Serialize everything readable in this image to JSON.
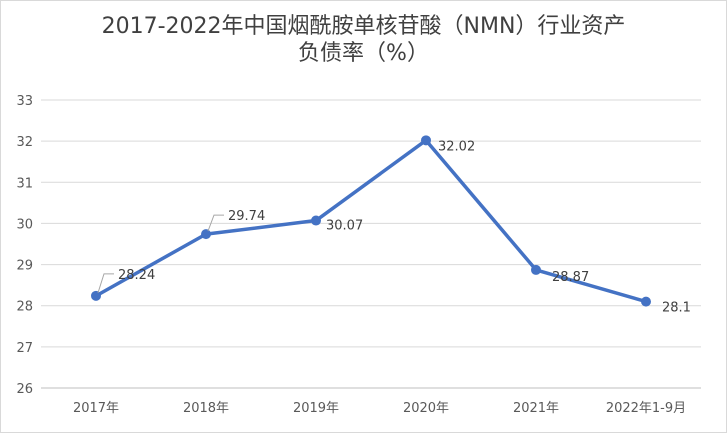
{
  "chart_data": {
    "type": "line",
    "title_line1": "2017-2022年中国烟酰胺单核苷酸（NMN）行业资产",
    "title_line2": "负债率（%）",
    "categories": [
      "2017年",
      "2018年",
      "2019年",
      "2020年",
      "2021年",
      "2022年1-9月"
    ],
    "values": [
      28.24,
      29.74,
      30.07,
      32.02,
      28.87,
      28.1
    ],
    "data_labels": [
      "28.24",
      "29.74",
      "30.07",
      "32.02",
      "28.87",
      "28.1"
    ],
    "ylim": [
      26,
      33
    ],
    "yticks": [
      "26",
      "27",
      "28",
      "29",
      "30",
      "31",
      "32",
      "33"
    ],
    "grid": true,
    "line_color": "#4472c4"
  }
}
